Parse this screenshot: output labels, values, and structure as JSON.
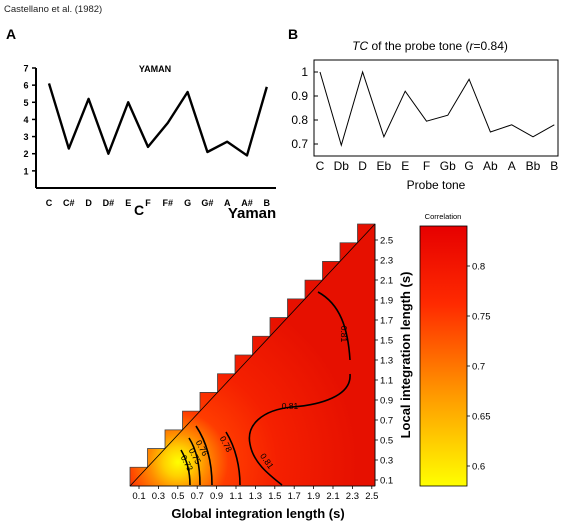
{
  "source_label": "Castellano et al. (1982)",
  "panels": {
    "a": "A",
    "b": "B",
    "c": "C"
  },
  "chart_data": [
    {
      "type": "line",
      "panel": "A",
      "title": "YAMAN",
      "style": "hand-drawn",
      "categories": [
        "C",
        "C#",
        "D",
        "D#",
        "E",
        "F",
        "F#",
        "G",
        "G#",
        "A",
        "A#",
        "B"
      ],
      "values": [
        6.1,
        2.3,
        5.2,
        2.0,
        5.0,
        2.4,
        3.8,
        5.6,
        2.1,
        2.7,
        1.9,
        5.9
      ],
      "yticks": [
        "1",
        "2",
        "3",
        "4",
        "5",
        "6",
        "7"
      ],
      "ylim": [
        0,
        7
      ]
    },
    {
      "type": "line",
      "panel": "B",
      "title_prefix": "TC",
      "title_rest": " of the probe tone (",
      "title_r": "r",
      "title_val": "=0.84)",
      "xlabel": "Probe tone",
      "categories": [
        "C",
        "Db",
        "D",
        "Eb",
        "E",
        "F",
        "Gb",
        "G",
        "Ab",
        "A",
        "Bb",
        "B"
      ],
      "values": [
        1.0,
        0.695,
        1.0,
        0.73,
        0.92,
        0.795,
        0.82,
        0.97,
        0.75,
        0.78,
        0.73,
        0.78
      ],
      "yticks": [
        "0.7",
        "0.8",
        "0.9",
        "1"
      ],
      "ylim": [
        0.65,
        1.05
      ]
    },
    {
      "type": "heatmap",
      "panel": "C",
      "title": "Yaman",
      "xlabel": "Global integration length (s)",
      "ylabel": "Local integration length (s)",
      "xticks": [
        "0.1",
        "0.3",
        "0.5",
        "0.7",
        "0.9",
        "1.1",
        "1.3",
        "1.5",
        "1.7",
        "1.9",
        "2.1",
        "2.3",
        "2.5"
      ],
      "yticks": [
        "0.1",
        "0.3",
        "0.5",
        "0.7",
        "0.9",
        "1.1",
        "1.3",
        "1.5",
        "1.7",
        "1.9",
        "2.1",
        "2.3",
        "2.5"
      ],
      "range": [
        0.1,
        2.5
      ],
      "contours": [
        {
          "label": "0.81",
          "level": 0.81
        },
        {
          "label": "0.81",
          "level": 0.81
        },
        {
          "label": "0.81",
          "level": 0.81
        },
        {
          "label": "0.78",
          "level": 0.78
        },
        {
          "label": "0.76",
          "level": 0.76
        },
        {
          "label": "0.75",
          "level": 0.75
        },
        {
          "label": "0.73",
          "level": 0.73
        }
      ],
      "colorbar": {
        "label": "Correlation",
        "ticks": [
          "0.6",
          "0.65",
          "0.7",
          "0.75",
          "0.8"
        ],
        "range": [
          0.58,
          0.84
        ],
        "colors": [
          "#ffff00",
          "#ff9900",
          "#ff2a00",
          "#e60000"
        ]
      }
    }
  ]
}
